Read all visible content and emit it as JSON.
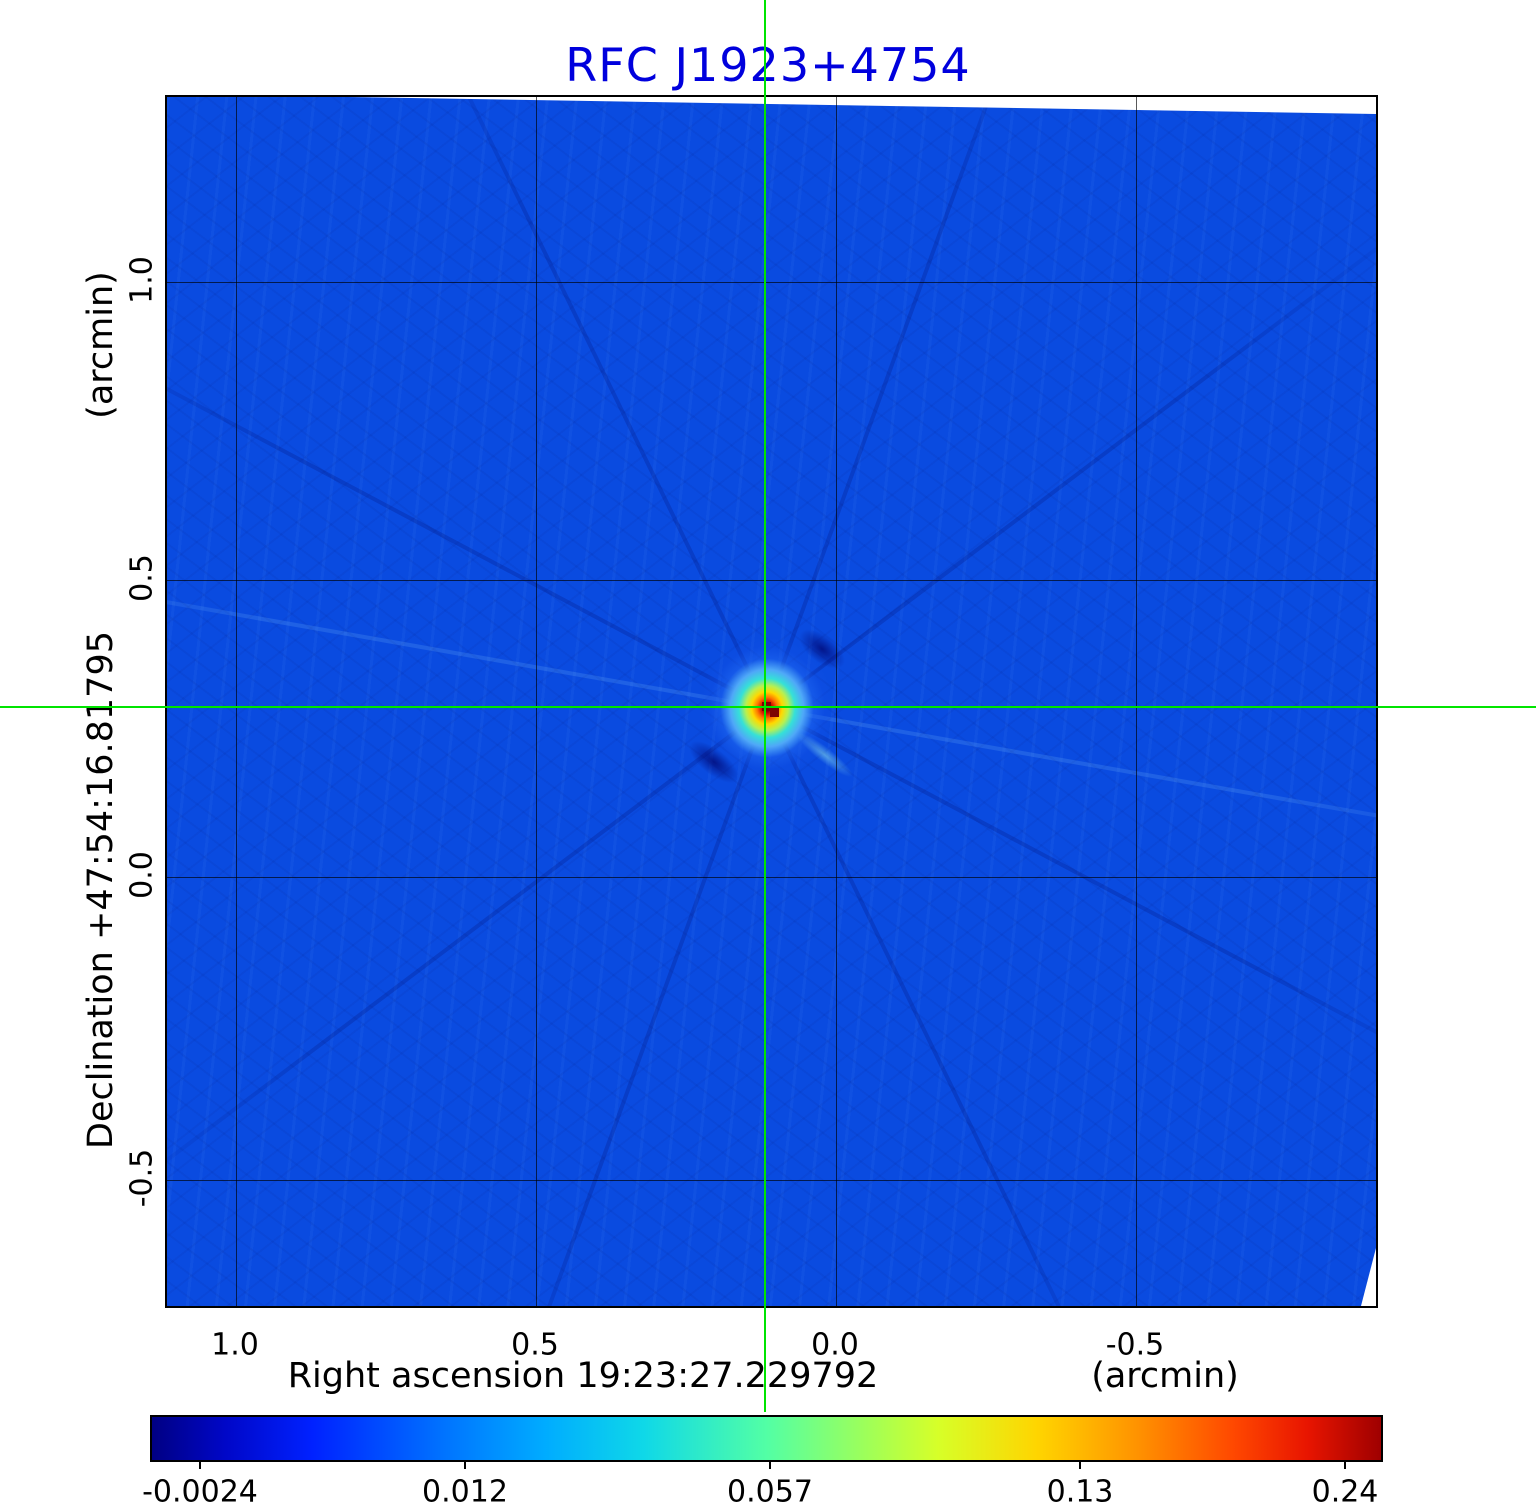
{
  "title": "RFC J1923+4754",
  "colors": {
    "title_blue": "#0000dd",
    "crosshair_green": "#00e400",
    "image_background_blue": "#0a4be0",
    "grid": "#000000"
  },
  "axes": {
    "x": {
      "label": "Right ascension  19:23:27.229792",
      "unit": "(arcmin)",
      "ticks": [
        "1.0",
        "0.5",
        "0.0",
        "-0.5"
      ]
    },
    "y": {
      "label": "Declination  +47:54:16.81795",
      "unit": "(arcmin)",
      "ticks": [
        "1.0",
        "0.5",
        "0.0",
        "-0.5"
      ]
    }
  },
  "colorbar": {
    "ticks": [
      "-0.0024",
      "0.012",
      "0.057",
      "0.13",
      "0.24"
    ],
    "colormap": "jet"
  },
  "chart_data": {
    "type": "heatmap",
    "title": "RFC J1923+4754",
    "xlabel": "Right ascension 19:23:27.229792 (arcmin)",
    "ylabel": "Declination +47:54:16.81795 (arcmin)",
    "x_ticks": [
      1.0,
      0.5,
      0.0,
      -0.5
    ],
    "y_ticks": [
      1.0,
      0.5,
      0.0,
      -0.5
    ],
    "x_range_arcmin": [
      1.12,
      -0.91
    ],
    "y_range_arcmin": [
      -0.73,
      1.31
    ],
    "colorbar_tick_values": [
      -0.0024,
      0.012,
      0.057,
      0.13,
      0.24
    ],
    "value_range": [
      -0.0024,
      0.24
    ],
    "colormap": "jet",
    "grid": true,
    "background_level": 0.0,
    "peak_source": {
      "x_arcmin": 0.12,
      "y_arcmin": 0.28,
      "peak_value": 0.24
    },
    "crosshair_position": {
      "x_arcmin": 0.12,
      "y_arcmin": 0.28
    }
  }
}
